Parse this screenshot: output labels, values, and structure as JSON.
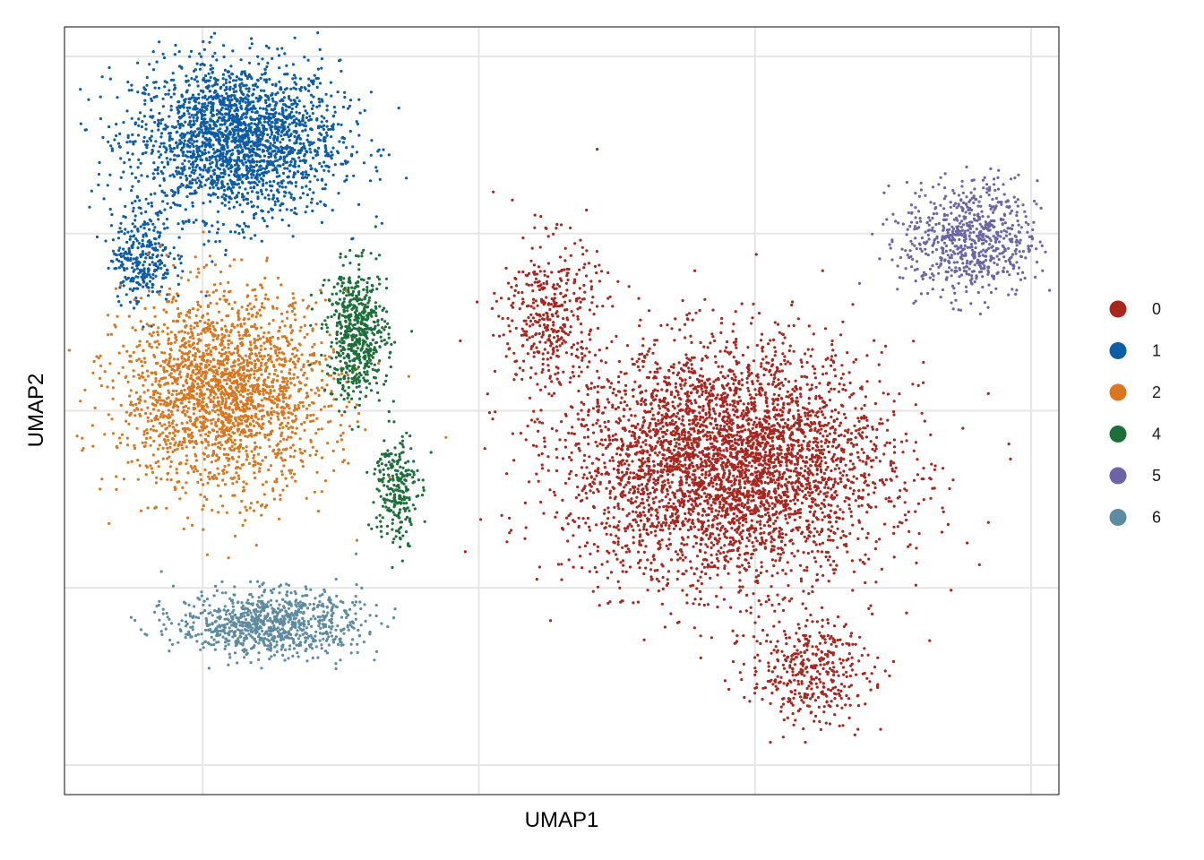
{
  "chart_data": {
    "type": "scatter",
    "title": "",
    "xlabel": "UMAP1",
    "ylabel": "UMAP2",
    "xlim": [
      -7.5,
      10.5
    ],
    "ylim": [
      -6.5,
      6.5
    ],
    "grid": true,
    "tick_labels_shown": false,
    "legend_position": "right",
    "series": [
      {
        "name": "0",
        "color": "#A9261F"
      },
      {
        "name": "1",
        "color": "#0D5CA6"
      },
      {
        "name": "2",
        "color": "#D9761E"
      },
      {
        "name": "4",
        "color": "#1D6F3A"
      },
      {
        "name": "5",
        "color": "#6B64A7"
      },
      {
        "name": "6",
        "color": "#5E8BA0"
      }
    ],
    "clusters": [
      {
        "series": "1",
        "center": [
          -4.4,
          4.6
        ],
        "spread": [
          1.7,
          1.2
        ],
        "count": 2300
      },
      {
        "series": "1",
        "center": [
          -6.1,
          2.6
        ],
        "spread": [
          0.5,
          0.7
        ],
        "count": 300
      },
      {
        "series": "2",
        "center": [
          -4.6,
          0.3
        ],
        "spread": [
          1.7,
          1.5
        ],
        "count": 2200
      },
      {
        "series": "4",
        "center": [
          -2.2,
          1.3
        ],
        "spread": [
          0.5,
          1.0
        ],
        "count": 600
      },
      {
        "series": "4",
        "center": [
          -1.5,
          -1.3
        ],
        "spread": [
          0.35,
          0.9
        ],
        "count": 250
      },
      {
        "series": "6",
        "center": [
          -3.8,
          -3.6
        ],
        "spread": [
          1.5,
          0.5
        ],
        "count": 900
      },
      {
        "series": "0",
        "center": [
          4.5,
          -0.9
        ],
        "spread": [
          2.6,
          1.8
        ],
        "count": 4200
      },
      {
        "series": "0",
        "center": [
          1.3,
          1.6
        ],
        "spread": [
          0.8,
          1.2
        ],
        "count": 400
      },
      {
        "series": "0",
        "center": [
          6.0,
          -4.4
        ],
        "spread": [
          1.0,
          0.8
        ],
        "count": 400
      },
      {
        "series": "5",
        "center": [
          8.9,
          2.9
        ],
        "spread": [
          1.1,
          0.9
        ],
        "count": 700
      }
    ]
  }
}
